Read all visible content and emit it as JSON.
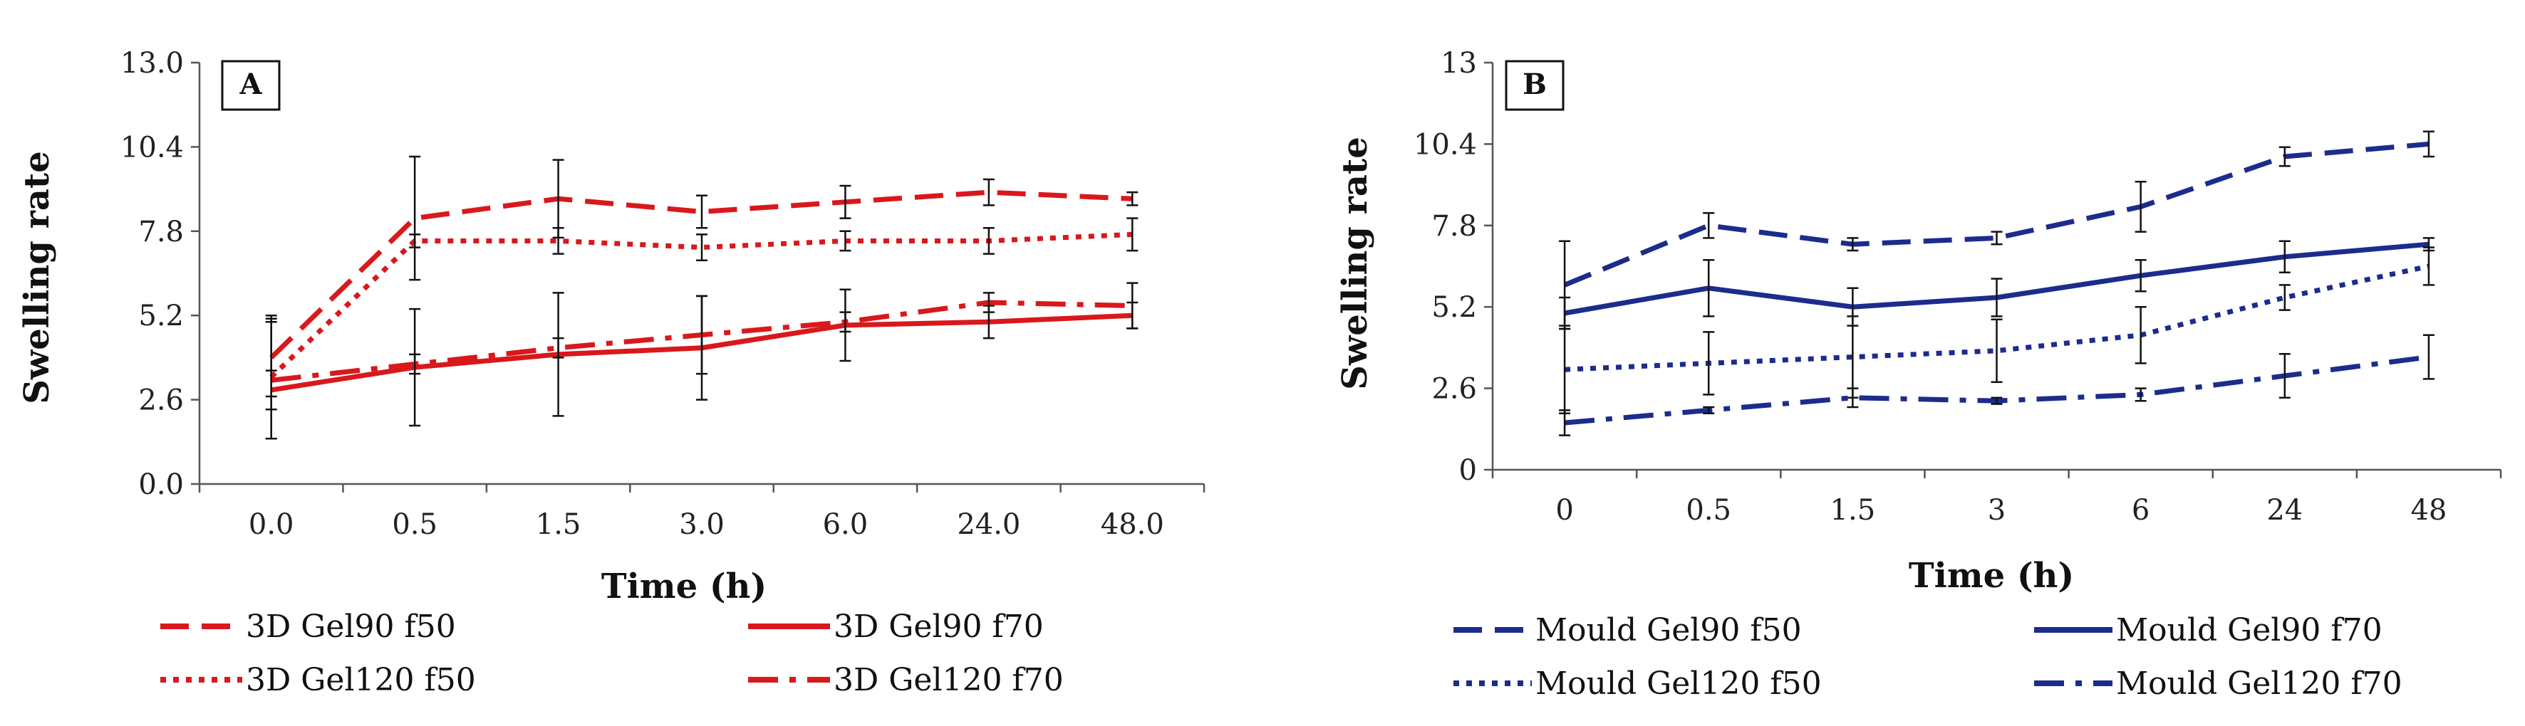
{
  "chart_data": [
    {
      "type": "line",
      "panel": "A",
      "xlabel": "Time (h)",
      "ylabel": "Swelling rate",
      "categories": [
        "0.0",
        "0.5",
        "1.5",
        "3.0",
        "6.0",
        "24.0",
        "48.0"
      ],
      "yticks": [
        "0.0",
        "2.6",
        "5.2",
        "7.8",
        "10.4",
        "13.0"
      ],
      "ylim": [
        0,
        13
      ],
      "color": "#d9181c",
      "series": [
        {
          "name": "3D Gel90 f50",
          "style": "dashed",
          "values": [
            3.9,
            8.2,
            8.8,
            8.4,
            8.7,
            9.0,
            8.8
          ],
          "errors": [
            1.2,
            1.9,
            1.2,
            0.5,
            0.5,
            0.4,
            0.2
          ]
        },
        {
          "name": "3D Gel90 f70",
          "style": "solid",
          "values": [
            2.9,
            3.6,
            4.0,
            4.2,
            4.9,
            5.0,
            5.2
          ],
          "errors": [
            0.6,
            1.8,
            1.9,
            1.6,
            1.1,
            0.5,
            0.4
          ]
        },
        {
          "name": "3D Gel120 f50",
          "style": "dotted",
          "values": [
            3.3,
            7.5,
            7.5,
            7.3,
            7.5,
            7.5,
            7.7
          ],
          "errors": [
            1.9,
            0.2,
            0.4,
            0.4,
            0.3,
            0.4,
            0.5
          ]
        },
        {
          "name": "3D Gel120 f70",
          "style": "dashdot",
          "values": [
            3.2,
            3.7,
            4.2,
            4.6,
            5.0,
            5.6,
            5.5
          ],
          "errors": [
            1.8,
            0.3,
            0.3,
            1.2,
            0.3,
            0.3,
            0.7
          ]
        }
      ]
    },
    {
      "type": "line",
      "panel": "B",
      "xlabel": "Time (h)",
      "ylabel": "Swelling rate",
      "categories": [
        "0",
        "0.5",
        "1.5",
        "3",
        "6",
        "24",
        "48"
      ],
      "yticks": [
        "0",
        "2.6",
        "5.2",
        "7.8",
        "10.4",
        "13"
      ],
      "ylim": [
        0,
        13
      ],
      "color": "#1c2c8c",
      "series": [
        {
          "name": "Mould Gel90 f50",
          "style": "dashed",
          "values": [
            5.9,
            7.8,
            7.2,
            7.4,
            8.4,
            10.0,
            10.4
          ],
          "errors": [
            1.4,
            0.4,
            0.2,
            0.2,
            0.8,
            0.3,
            0.4
          ]
        },
        {
          "name": "Mould Gel90 f70",
          "style": "solid",
          "values": [
            5.0,
            5.8,
            5.2,
            5.5,
            6.2,
            6.8,
            7.2
          ],
          "errors": [
            0.5,
            0.9,
            0.6,
            0.6,
            0.5,
            0.5,
            0.2
          ]
        },
        {
          "name": "Mould Gel120 f50",
          "style": "dotted",
          "values": [
            3.2,
            3.4,
            3.6,
            3.8,
            4.3,
            5.5,
            6.5
          ],
          "errors": [
            1.4,
            1.0,
            1.3,
            1.0,
            0.9,
            0.4,
            0.6
          ]
        },
        {
          "name": "Mould Gel120 f70",
          "style": "dashdot",
          "values": [
            1.5,
            1.9,
            2.3,
            2.2,
            2.4,
            3.0,
            3.6
          ],
          "errors": [
            0.4,
            0.1,
            0.3,
            0.1,
            0.2,
            0.7,
            0.7
          ]
        }
      ]
    }
  ]
}
